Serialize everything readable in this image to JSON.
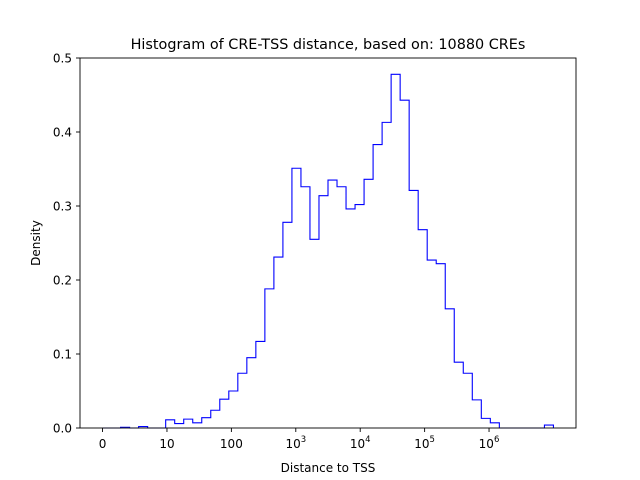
{
  "chart_data": {
    "type": "histogram",
    "title": "Histogram of CRE-TSS distance, based on: 10880 CREs",
    "xlabel": "Distance to TSS",
    "ylabel": "Density",
    "x_scale": "log10(distance + 1)",
    "xlim": [
      -0.35,
      7.35
    ],
    "ylim": [
      0,
      0.5
    ],
    "x_ticks": [
      {
        "value": 0,
        "label": "0"
      },
      {
        "value": 1,
        "label": "10"
      },
      {
        "value": 2,
        "label": "100"
      },
      {
        "value": 3,
        "base": "10",
        "exp": "3"
      },
      {
        "value": 4,
        "base": "10",
        "exp": "4"
      },
      {
        "value": 5,
        "base": "10",
        "exp": "5"
      },
      {
        "value": 6,
        "base": "10",
        "exp": "6"
      }
    ],
    "y_ticks": [
      {
        "value": 0.0,
        "label": "0.0"
      },
      {
        "value": 0.1,
        "label": "0.1"
      },
      {
        "value": 0.2,
        "label": "0.2"
      },
      {
        "value": 0.3,
        "label": "0.3"
      },
      {
        "value": 0.4,
        "label": "0.4"
      },
      {
        "value": 0.5,
        "label": "0.5"
      }
    ],
    "grid": false,
    "legend": "none",
    "bin_edges": [
      0.0,
      0.14,
      0.28,
      0.42,
      0.56,
      0.7,
      0.84,
      0.98,
      1.12,
      1.26,
      1.4,
      1.54,
      1.68,
      1.82,
      1.96,
      2.1,
      2.24,
      2.38,
      2.52,
      2.66,
      2.8,
      2.94,
      3.08,
      3.22,
      3.36,
      3.5,
      3.64,
      3.78,
      3.92,
      4.06,
      4.2,
      4.34,
      4.48,
      4.62,
      4.76,
      4.9,
      5.04,
      5.18,
      5.32,
      5.46,
      5.6,
      5.74,
      5.88,
      6.02,
      6.16,
      6.3,
      6.44,
      6.58,
      6.72,
      6.86,
      7.0
    ],
    "density": [
      0.0,
      0.0,
      0.001,
      0.0,
      0.002,
      0.0,
      0.0,
      0.011,
      0.006,
      0.012,
      0.007,
      0.014,
      0.024,
      0.039,
      0.05,
      0.074,
      0.095,
      0.117,
      0.188,
      0.231,
      0.278,
      0.351,
      0.326,
      0.255,
      0.314,
      0.335,
      0.326,
      0.296,
      0.302,
      0.336,
      0.383,
      0.413,
      0.478,
      0.443,
      0.321,
      0.268,
      0.227,
      0.222,
      0.161,
      0.089,
      0.074,
      0.038,
      0.013,
      0.007,
      0.0,
      0.0,
      0.0,
      0.0,
      0.0,
      0.004
    ],
    "line_color": "#0000ff"
  }
}
